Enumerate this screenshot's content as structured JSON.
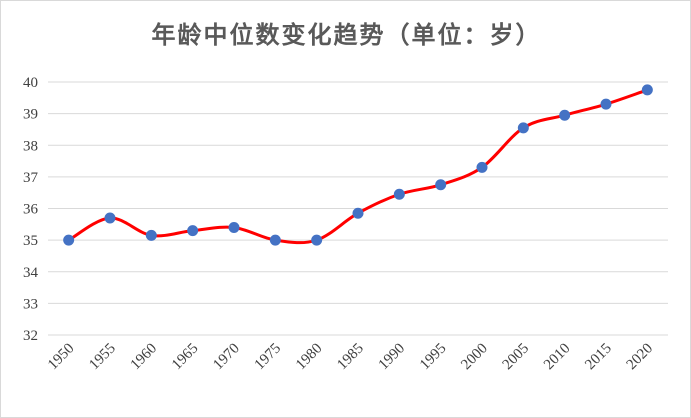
{
  "chart_data": {
    "type": "line",
    "title": "年龄中位数变化趋势（单位：岁）",
    "xlabel": "",
    "ylabel": "",
    "x": [
      "1950",
      "1955",
      "1960",
      "1965",
      "1970",
      "1975",
      "1980",
      "1985",
      "1990",
      "1995",
      "2000",
      "2005",
      "2010",
      "2015",
      "2020"
    ],
    "series": [
      {
        "values": [
          35.0,
          35.7,
          35.15,
          35.3,
          35.4,
          35.0,
          35.0,
          35.85,
          36.45,
          36.75,
          37.3,
          38.55,
          38.95,
          39.3,
          39.75
        ]
      }
    ],
    "ylim": [
      32,
      40
    ],
    "yticks": [
      32,
      33,
      34,
      35,
      36,
      37,
      38,
      39,
      40
    ],
    "grid": true,
    "legend": "none",
    "line_color": "#ff0000",
    "marker_color": "#4472c4",
    "grid_color": "#d9d9d9"
  }
}
